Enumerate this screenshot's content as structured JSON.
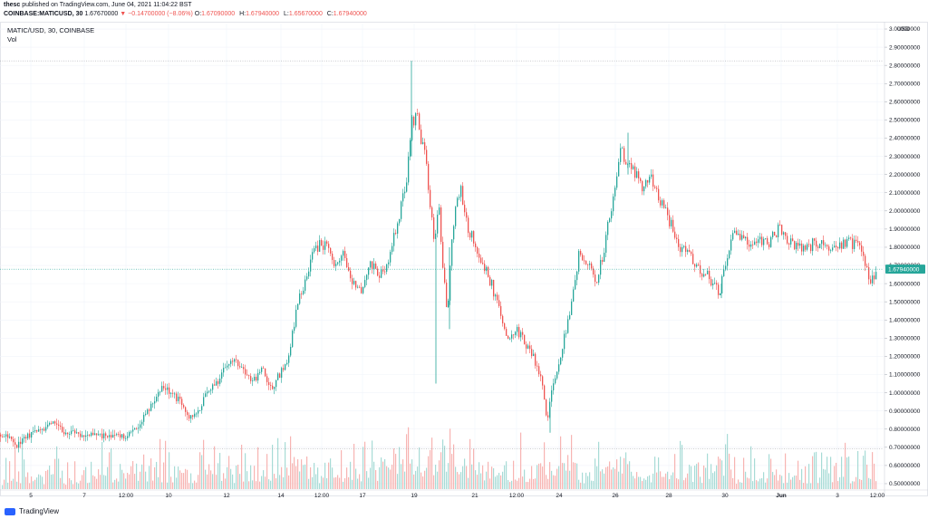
{
  "header": {
    "publisher": "thesc",
    "published_text": "published on TradingView.com, June 04, 2021 11:04:22 BST"
  },
  "symbol_bar": {
    "symbol": "COINBASE:MATICUSD, 30",
    "price": "1.67670000",
    "change": "−0.14700000 (−8.06%)",
    "o_label": "O:",
    "o_value": "1.67090000",
    "h_label": "H:",
    "h_value": "1.67940000",
    "l_label": "L:",
    "l_value": "1.65670000",
    "c_label": "C:",
    "c_value": "1.67940000"
  },
  "legend": {
    "title": "MATIC/USD, 30, COINBASE",
    "vol": "Vol"
  },
  "footer": {
    "brand": "TradingView"
  },
  "colors": {
    "up": "#26a69a",
    "down": "#ef5350",
    "vol_up": "#a7dbd6",
    "vol_down": "#f7b4b2",
    "price_label_bg": "#26a69a",
    "grid": "#f0f3fa"
  },
  "chart_data": {
    "type": "candlestick",
    "title": "MATIC/USD, 30, COINBASE",
    "currency_label": "USD",
    "y_range": [
      0.47,
      3.03
    ],
    "y_ticks": [
      "3.00000000",
      "2.90000000",
      "2.80000000",
      "2.70000000",
      "2.60000000",
      "2.50000000",
      "2.40000000",
      "2.30000000",
      "2.20000000",
      "2.10000000",
      "2.00000000",
      "1.90000000",
      "1.80000000",
      "1.70000000",
      "1.60000000",
      "1.50000000",
      "1.40000000",
      "1.30000000",
      "1.20000000",
      "1.10000000",
      "1.00000000",
      "0.90000000",
      "0.80000000",
      "0.70000000",
      "0.60000000",
      "0.50000000"
    ],
    "x_ticks": [
      "5",
      "7",
      "12:00",
      "10",
      "12",
      "14",
      "12:00",
      "17",
      "19",
      "21",
      "12:00",
      "24",
      "26",
      "28",
      "30",
      "Jun",
      "3",
      "12:00"
    ],
    "last_price": 1.6794,
    "last_price_label": "1.67940000",
    "high_line": 2.825,
    "low_line": 0.693,
    "series": [
      {
        "name": "MATIC/USD",
        "path": [
          [
            0,
            0.77
          ],
          [
            10,
            0.76
          ],
          [
            20,
            0.71
          ],
          [
            30,
            0.76
          ],
          [
            40,
            0.78
          ],
          [
            50,
            0.8
          ],
          [
            60,
            0.83
          ],
          [
            70,
            0.79
          ],
          [
            80,
            0.78
          ],
          [
            90,
            0.77
          ],
          [
            100,
            0.77
          ],
          [
            110,
            0.76
          ],
          [
            120,
            0.77
          ],
          [
            130,
            0.76
          ],
          [
            140,
            0.76
          ],
          [
            150,
            0.79
          ],
          [
            160,
            0.87
          ],
          [
            170,
            0.95
          ],
          [
            180,
            1.04
          ],
          [
            190,
            1.0
          ],
          [
            200,
            0.95
          ],
          [
            210,
            0.85
          ],
          [
            220,
            0.9
          ],
          [
            230,
            1.0
          ],
          [
            240,
            1.05
          ],
          [
            250,
            1.15
          ],
          [
            260,
            1.2
          ],
          [
            270,
            1.12
          ],
          [
            280,
            1.05
          ],
          [
            290,
            1.14
          ],
          [
            300,
            1.02
          ],
          [
            310,
            1.1
          ],
          [
            320,
            1.2
          ],
          [
            330,
            1.5
          ],
          [
            340,
            1.65
          ],
          [
            350,
            1.8
          ],
          [
            360,
            1.82
          ],
          [
            370,
            1.68
          ],
          [
            380,
            1.75
          ],
          [
            390,
            1.6
          ],
          [
            400,
            1.55
          ],
          [
            410,
            1.72
          ],
          [
            420,
            1.65
          ],
          [
            430,
            1.7
          ],
          [
            440,
            1.95
          ],
          [
            450,
            2.15
          ],
          [
            455,
            2.45
          ],
          [
            460,
            2.55
          ],
          [
            465,
            2.4
          ],
          [
            470,
            2.3
          ],
          [
            475,
            2.1
          ],
          [
            480,
            1.82
          ],
          [
            485,
            2.05
          ],
          [
            490,
            1.7
          ],
          [
            495,
            1.45
          ],
          [
            500,
            1.85
          ],
          [
            505,
            2.05
          ],
          [
            510,
            2.15
          ],
          [
            515,
            1.95
          ],
          [
            520,
            1.88
          ],
          [
            530,
            1.75
          ],
          [
            540,
            1.65
          ],
          [
            550,
            1.5
          ],
          [
            560,
            1.3
          ],
          [
            570,
            1.35
          ],
          [
            580,
            1.28
          ],
          [
            590,
            1.2
          ],
          [
            600,
            1.05
          ],
          [
            605,
            0.85
          ],
          [
            610,
            1.0
          ],
          [
            620,
            1.2
          ],
          [
            630,
            1.45
          ],
          [
            640,
            1.75
          ],
          [
            650,
            1.7
          ],
          [
            660,
            1.6
          ],
          [
            670,
            1.85
          ],
          [
            680,
            2.15
          ],
          [
            685,
            2.35
          ],
          [
            690,
            2.28
          ],
          [
            700,
            2.25
          ],
          [
            710,
            2.1
          ],
          [
            720,
            2.2
          ],
          [
            730,
            2.05
          ],
          [
            740,
            1.95
          ],
          [
            750,
            1.8
          ],
          [
            760,
            1.78
          ],
          [
            770,
            1.7
          ],
          [
            780,
            1.65
          ],
          [
            790,
            1.6
          ],
          [
            795,
            1.55
          ],
          [
            800,
            1.65
          ],
          [
            810,
            1.85
          ],
          [
            820,
            1.88
          ],
          [
            830,
            1.82
          ],
          [
            840,
            1.85
          ],
          [
            850,
            1.83
          ],
          [
            860,
            1.9
          ],
          [
            870,
            1.85
          ],
          [
            880,
            1.8
          ],
          [
            890,
            1.8
          ],
          [
            900,
            1.82
          ],
          [
            910,
            1.8
          ],
          [
            920,
            1.78
          ],
          [
            930,
            1.82
          ],
          [
            940,
            1.83
          ],
          [
            950,
            1.8
          ],
          [
            955,
            1.75
          ],
          [
            960,
            1.6
          ],
          [
            965,
            1.62
          ],
          [
            968,
            1.68
          ]
        ]
      }
    ],
    "candle_spikes": [
      {
        "x": 454,
        "high": 2.825,
        "low": 2.3
      },
      {
        "x": 481,
        "high": 1.85,
        "low": 1.05
      },
      {
        "x": 496,
        "high": 1.8,
        "low": 1.35
      },
      {
        "x": 607,
        "high": 0.92,
        "low": 0.78
      },
      {
        "x": 693,
        "high": 2.43,
        "low": 2.2
      },
      {
        "x": 796,
        "high": 1.6,
        "low": 1.52
      }
    ]
  }
}
